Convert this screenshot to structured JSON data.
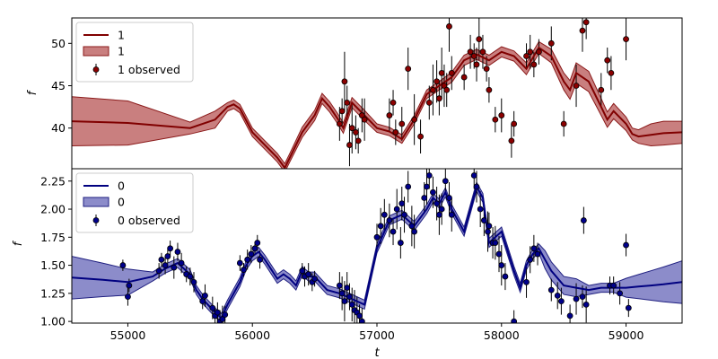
{
  "chart_data": [
    {
      "type": "line",
      "panel": "top",
      "xlabel": "",
      "ylabel": "f",
      "xlim": [
        54550,
        59450
      ],
      "ylim": [
        35.2,
        53.0
      ],
      "xticks": [],
      "yticks": [
        40,
        45,
        50
      ],
      "ytick_labels": [
        "40",
        "45",
        "50"
      ],
      "legend_placement": "upper-left",
      "colors": {
        "line": "#800000",
        "band": "#a52a2a",
        "band_edge": "#8b1a1a",
        "marker": "#8b0000"
      },
      "legend": {
        "line_label": "1",
        "band_label": "1",
        "points_label": "1 observed"
      },
      "series": [
        {
          "name": "1",
          "kind": "model",
          "x": [
            54550,
            55000,
            55500,
            55700,
            55800,
            55850,
            55900,
            56000,
            56100,
            56200,
            56260,
            56300,
            56400,
            56500,
            56560,
            56620,
            56680,
            56730,
            56800,
            56900,
            57000,
            57100,
            57200,
            57300,
            57400,
            57500,
            57600,
            57700,
            57800,
            57900,
            58000,
            58100,
            58200,
            58300,
            58400,
            58500,
            58550,
            58600,
            58700,
            58800,
            58850,
            58900,
            59000,
            59050,
            59100,
            59200,
            59300,
            59450
          ],
          "y": [
            40.8,
            40.6,
            40.0,
            41.0,
            42.5,
            42.8,
            42.3,
            39.5,
            38.0,
            36.5,
            35.3,
            36.5,
            39.5,
            41.5,
            43.5,
            42.5,
            41.2,
            40.0,
            43.0,
            41.5,
            40.0,
            39.6,
            38.7,
            41.0,
            44.0,
            45.0,
            46.0,
            48.0,
            48.7,
            48.0,
            49.0,
            48.5,
            47.0,
            49.5,
            48.5,
            45.5,
            44.5,
            46.5,
            45.5,
            42.5,
            41.0,
            42.0,
            40.5,
            39.3,
            39.0,
            39.2,
            39.4,
            39.5
          ],
          "band": [
            2.9,
            2.6,
            0.7,
            1.0,
            0.5,
            0.5,
            0.5,
            0.5,
            0.5,
            0.5,
            0.5,
            0.5,
            0.6,
            0.6,
            0.6,
            0.6,
            0.6,
            0.6,
            0.6,
            0.6,
            0.5,
            0.5,
            0.5,
            0.5,
            0.5,
            0.5,
            0.6,
            0.6,
            0.6,
            0.6,
            0.6,
            0.6,
            0.7,
            0.7,
            0.8,
            1.0,
            1.1,
            1.2,
            1.2,
            1.0,
            0.9,
            0.9,
            0.8,
            0.7,
            0.8,
            1.3,
            1.4,
            1.3
          ]
        },
        {
          "name": "1 observed",
          "kind": "points",
          "x": [
            56700,
            56720,
            56740,
            56760,
            56780,
            56800,
            56830,
            56850,
            56880,
            56900,
            57100,
            57130,
            57150,
            57200,
            57250,
            57300,
            57350,
            57420,
            57450,
            57480,
            57500,
            57520,
            57540,
            57560,
            57580,
            57600,
            57700,
            57750,
            57780,
            57800,
            57820,
            57850,
            57880,
            57900,
            57950,
            58000,
            58080,
            58100,
            58200,
            58230,
            58260,
            58300,
            58400,
            58500,
            58600,
            58650,
            58680,
            58800,
            58850,
            58880,
            59000
          ],
          "y": [
            40.5,
            42.0,
            45.5,
            43.0,
            38.0,
            40.0,
            39.5,
            38.5,
            41.5,
            41.0,
            41.5,
            43.0,
            39.5,
            40.5,
            47.0,
            41.0,
            39.0,
            43.0,
            44.5,
            45.5,
            43.5,
            46.5,
            45.0,
            44.5,
            52.0,
            46.5,
            46.0,
            49.0,
            48.5,
            47.5,
            50.5,
            49.0,
            47.0,
            44.5,
            41.0,
            41.5,
            38.5,
            40.5,
            48.5,
            49.0,
            47.5,
            49.0,
            50.0,
            40.5,
            45.0,
            51.5,
            52.5,
            44.5,
            48.0,
            46.5,
            50.5
          ],
          "yerr": [
            2.0,
            1.5,
            3.5,
            2.0,
            2.5,
            3.0,
            2.0,
            1.5,
            2.0,
            2.5,
            2.0,
            1.5,
            1.5,
            2.0,
            2.5,
            3.0,
            2.0,
            2.0,
            3.0,
            2.5,
            2.0,
            3.0,
            2.5,
            2.0,
            3.0,
            2.0,
            1.5,
            2.0,
            1.5,
            2.0,
            2.5,
            2.0,
            1.5,
            1.5,
            1.5,
            2.0,
            2.0,
            1.5,
            1.5,
            2.0,
            1.5,
            1.5,
            2.0,
            1.5,
            2.5,
            2.5,
            2.0,
            2.0,
            1.5,
            2.0,
            2.5
          ]
        }
      ]
    },
    {
      "type": "line",
      "panel": "bottom",
      "xlabel": "t",
      "ylabel": "f",
      "xlim": [
        54550,
        59450
      ],
      "ylim": [
        0.985,
        2.36
      ],
      "xticks": [
        55000,
        56000,
        57000,
        58000,
        59000
      ],
      "xtick_labels": [
        "55000",
        "56000",
        "57000",
        "58000",
        "59000"
      ],
      "yticks": [
        1.0,
        1.25,
        1.5,
        1.75,
        2.0,
        2.25
      ],
      "ytick_labels": [
        "1.00",
        "1.25",
        "1.50",
        "1.75",
        "2.00",
        "2.25"
      ],
      "legend_placement": "upper-left",
      "colors": {
        "line": "#000080",
        "band": "#3f3fa6",
        "band_edge": "#1f1f80",
        "marker": "#00008b"
      },
      "legend": {
        "line_label": "0",
        "band_label": "0",
        "points_label": "0 observed"
      },
      "series": [
        {
          "name": "0",
          "kind": "model",
          "x": [
            54550,
            54800,
            55000,
            55200,
            55300,
            55400,
            55500,
            55550,
            55600,
            55700,
            55750,
            55800,
            55900,
            55950,
            56000,
            56050,
            56100,
            56200,
            56250,
            56300,
            56350,
            56400,
            56450,
            56500,
            56600,
            56700,
            56800,
            56900,
            57000,
            57100,
            57200,
            57300,
            57400,
            57450,
            57500,
            57550,
            57600,
            57700,
            57750,
            57800,
            57850,
            57900,
            57950,
            58000,
            58100,
            58150,
            58200,
            58250,
            58300,
            58350,
            58400,
            58500,
            58600,
            58700,
            58800,
            58900,
            59000,
            59100,
            59200,
            59300,
            59450
          ],
          "y": [
            1.39,
            1.37,
            1.35,
            1.4,
            1.47,
            1.52,
            1.42,
            1.28,
            1.2,
            1.08,
            1.03,
            1.15,
            1.35,
            1.5,
            1.58,
            1.62,
            1.55,
            1.38,
            1.42,
            1.38,
            1.32,
            1.45,
            1.4,
            1.4,
            1.28,
            1.25,
            1.2,
            1.15,
            1.65,
            1.9,
            1.95,
            1.85,
            2.0,
            2.1,
            2.05,
            2.15,
            2.0,
            1.8,
            2.0,
            2.2,
            2.1,
            1.7,
            1.75,
            1.8,
            1.45,
            1.3,
            1.5,
            1.6,
            1.65,
            1.55,
            1.45,
            1.32,
            1.3,
            1.28,
            1.3,
            1.3,
            1.3,
            1.31,
            1.32,
            1.33,
            1.35
          ]
        },
        {
          "name": "0 observed",
          "kind": "points",
          "x": [
            54960,
            55000,
            55010,
            55250,
            55270,
            55300,
            55320,
            55340,
            55370,
            55400,
            55430,
            55470,
            55500,
            55530,
            55600,
            55620,
            55680,
            55700,
            55720,
            55740,
            55760,
            55780,
            55900,
            55930,
            55960,
            55990,
            56020,
            56040,
            56060,
            56400,
            56420,
            56450,
            56480,
            56500,
            56700,
            56720,
            56740,
            56760,
            56780,
            56800,
            56820,
            56840,
            56860,
            56880,
            57000,
            57030,
            57060,
            57100,
            57130,
            57160,
            57190,
            57200,
            57220,
            57250,
            57280,
            57300,
            57380,
            57400,
            57420,
            57450,
            57480,
            57500,
            57520,
            57550,
            57580,
            57600,
            57780,
            57800,
            57830,
            57860,
            57890,
            57900,
            57930,
            57950,
            57980,
            58000,
            58030,
            58100,
            58200,
            58230,
            58260,
            58290,
            58400,
            58450,
            58480,
            58550,
            58600,
            58650,
            58660,
            58680,
            58870,
            58900,
            58950,
            59000,
            59020
          ],
          "y": [
            1.5,
            1.22,
            1.32,
            1.45,
            1.55,
            1.5,
            1.58,
            1.65,
            1.48,
            1.62,
            1.52,
            1.42,
            1.4,
            1.35,
            1.18,
            1.23,
            1.12,
            1.05,
            1.08,
            1.0,
            1.02,
            1.06,
            1.52,
            1.46,
            1.55,
            1.6,
            1.65,
            1.7,
            1.55,
            1.45,
            1.4,
            1.42,
            1.35,
            1.38,
            1.32,
            1.25,
            1.18,
            1.3,
            1.22,
            1.15,
            1.1,
            1.08,
            1.05,
            1.0,
            1.75,
            1.85,
            1.95,
            1.9,
            1.8,
            2.0,
            1.7,
            2.05,
            1.95,
            2.2,
            1.85,
            1.8,
            2.1,
            2.2,
            2.3,
            2.15,
            2.05,
            1.95,
            2.0,
            2.25,
            2.1,
            1.95,
            2.3,
            2.2,
            2.0,
            1.9,
            1.8,
            1.85,
            1.7,
            1.7,
            1.6,
            1.5,
            1.4,
            1.0,
            1.35,
            1.55,
            1.65,
            1.6,
            1.28,
            1.23,
            1.18,
            1.05,
            1.2,
            1.22,
            1.9,
            1.15,
            1.32,
            1.32,
            1.25,
            1.68,
            1.12
          ],
          "yerr": [
            0.05,
            0.08,
            0.06,
            0.07,
            0.06,
            0.08,
            0.06,
            0.07,
            0.1,
            0.08,
            0.09,
            0.07,
            0.08,
            0.09,
            0.07,
            0.1,
            0.1,
            0.08,
            0.09,
            0.1,
            0.12,
            0.08,
            0.07,
            0.06,
            0.09,
            0.08,
            0.06,
            0.07,
            0.08,
            0.07,
            0.09,
            0.1,
            0.08,
            0.07,
            0.12,
            0.15,
            0.18,
            0.14,
            0.12,
            0.15,
            0.18,
            0.14,
            0.1,
            0.12,
            0.12,
            0.16,
            0.14,
            0.15,
            0.12,
            0.18,
            0.14,
            0.15,
            0.16,
            0.14,
            0.18,
            0.15,
            0.14,
            0.16,
            0.12,
            0.14,
            0.15,
            0.18,
            0.14,
            0.12,
            0.14,
            0.15,
            0.12,
            0.14,
            0.16,
            0.14,
            0.18,
            0.12,
            0.14,
            0.15,
            0.16,
            0.18,
            0.12,
            0.1,
            0.14,
            0.12,
            0.12,
            0.1,
            0.1,
            0.12,
            0.12,
            0.1,
            0.14,
            0.1,
            0.12,
            0.16,
            0.08,
            0.08,
            0.1,
            0.1,
            0.08
          ]
        }
      ]
    }
  ]
}
